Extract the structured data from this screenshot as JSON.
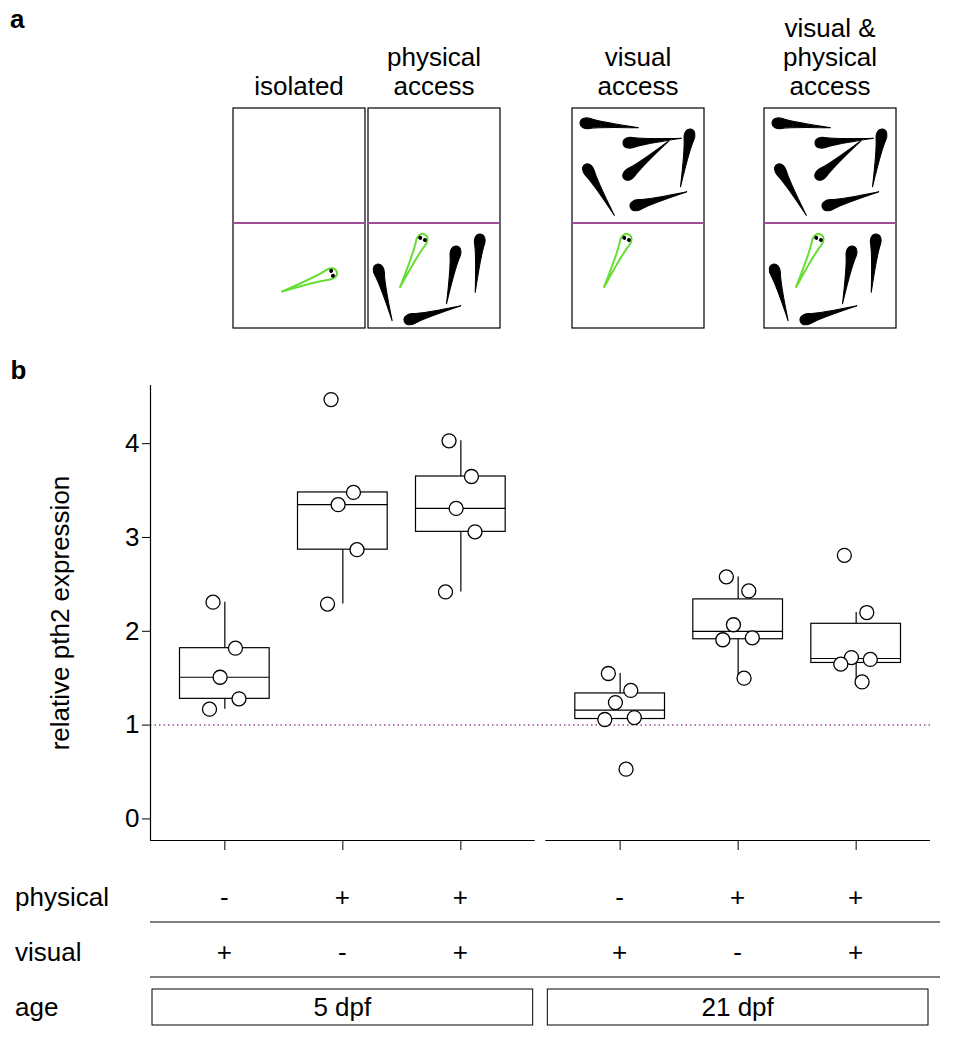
{
  "diagram": {
    "label": "a",
    "divider_color": "#9b4f96",
    "focal_color": "#66dd33",
    "conditions": [
      {
        "title": "isolated",
        "physical": false,
        "visual": false
      },
      {
        "title": "physical access",
        "physical": true,
        "visual": false
      },
      {
        "title": "visual access",
        "physical": false,
        "visual": true
      },
      {
        "title": "visual & physical access",
        "physical": true,
        "visual": true
      }
    ]
  },
  "chart_data": {
    "type": "box",
    "panel_label": "b",
    "y_label": "relative pth2 expression",
    "ylim": [
      -0.23,
      4.62
    ],
    "yticks": [
      0,
      1,
      2,
      3,
      4
    ],
    "color": "#000000",
    "reference_line": {
      "value": 1,
      "color": "#9b4f96",
      "line_style": "dotted"
    },
    "conditions": [
      {
        "name": "physical",
        "values": [
          "-",
          "+",
          "+",
          "-",
          "+",
          "+"
        ]
      },
      {
        "name": "visual",
        "values": [
          "+",
          "-",
          "+",
          "+",
          "-",
          "+"
        ]
      }
    ],
    "group_label": "age",
    "groups": [
      {
        "name": "5 dpf",
        "samples": [
          [
            2.31,
            1.82,
            1.51,
            1.28,
            1.17
          ],
          [
            4.47,
            3.48,
            3.35,
            2.87,
            2.29
          ],
          [
            4.03,
            3.65,
            3.31,
            3.06,
            2.42
          ]
        ]
      },
      {
        "name": "21 dpf",
        "samples": [
          [
            1.55,
            1.37,
            1.24,
            1.08,
            1.06,
            0.53
          ],
          [
            2.58,
            2.43,
            2.07,
            1.93,
            1.91,
            1.5
          ],
          [
            2.81,
            2.2,
            1.72,
            1.7,
            1.65,
            1.46
          ]
        ]
      }
    ]
  }
}
